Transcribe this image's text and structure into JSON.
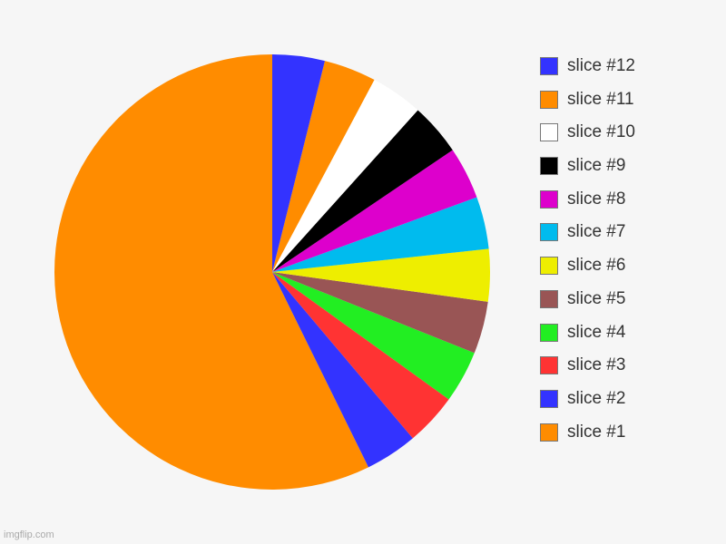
{
  "chart_data": {
    "type": "pie",
    "slices": [
      {
        "name": "slice #1",
        "value": 59,
        "color": "#ff8c00"
      },
      {
        "name": "slice #2",
        "value": 4,
        "color": "#3333ff"
      },
      {
        "name": "slice #3",
        "value": 4,
        "color": "#ff3333"
      },
      {
        "name": "slice #4",
        "value": 4,
        "color": "#22ee22"
      },
      {
        "name": "slice #5",
        "value": 4,
        "color": "#995555"
      },
      {
        "name": "slice #6",
        "value": 4,
        "color": "#eeee00"
      },
      {
        "name": "slice #7",
        "value": 4,
        "color": "#00bbee"
      },
      {
        "name": "slice #8",
        "value": 4,
        "color": "#dd00cc"
      },
      {
        "name": "slice #9",
        "value": 4,
        "color": "#000000"
      },
      {
        "name": "slice #10",
        "value": 4,
        "color": "#ffffff"
      },
      {
        "name": "slice #11",
        "value": 4,
        "color": "#ff8c00"
      },
      {
        "name": "slice #12",
        "value": 4,
        "color": "#3333ff"
      }
    ],
    "legend_placement": "right",
    "legend_order": "reversed"
  },
  "watermark": "imgflip.com"
}
